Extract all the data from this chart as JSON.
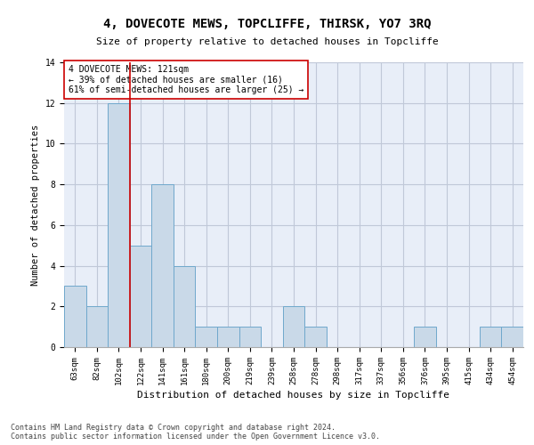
{
  "title": "4, DOVECOTE MEWS, TOPCLIFFE, THIRSK, YO7 3RQ",
  "subtitle": "Size of property relative to detached houses in Topcliffe",
  "xlabel": "Distribution of detached houses by size in Topcliffe",
  "ylabel": "Number of detached properties",
  "bin_labels": [
    "63sqm",
    "82sqm",
    "102sqm",
    "122sqm",
    "141sqm",
    "161sqm",
    "180sqm",
    "200sqm",
    "219sqm",
    "239sqm",
    "258sqm",
    "278sqm",
    "298sqm",
    "317sqm",
    "337sqm",
    "356sqm",
    "376sqm",
    "395sqm",
    "415sqm",
    "434sqm",
    "454sqm"
  ],
  "bin_values": [
    3,
    2,
    12,
    5,
    8,
    4,
    1,
    1,
    1,
    0,
    2,
    1,
    0,
    0,
    0,
    0,
    1,
    0,
    0,
    1,
    1
  ],
  "bar_color": "#c9d9e8",
  "bar_edge_color": "#6fa8cc",
  "vline_x": 2.5,
  "marker_label": "4 DOVECOTE MEWS: 121sqm",
  "pct_smaller": "39% of detached houses are smaller (16)",
  "pct_larger": "61% of semi-detached houses are larger (25)",
  "vline_color": "#cc0000",
  "annotation_box_color": "#cc0000",
  "ylim": [
    0,
    14
  ],
  "yticks": [
    0,
    2,
    4,
    6,
    8,
    10,
    12,
    14
  ],
  "grid_color": "#c0c8d8",
  "bg_color": "#e8eef8",
  "footer_line1": "Contains HM Land Registry data © Crown copyright and database right 2024.",
  "footer_line2": "Contains public sector information licensed under the Open Government Licence v3.0."
}
